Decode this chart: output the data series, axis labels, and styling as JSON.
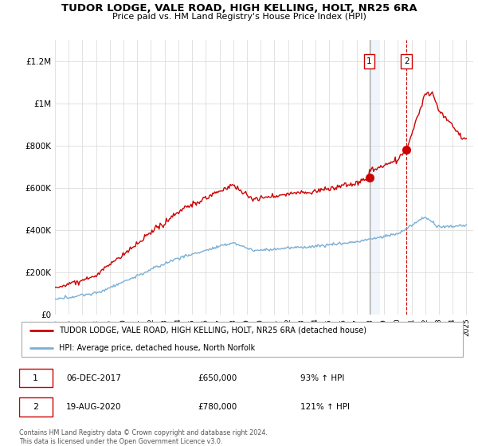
{
  "title": "TUDOR LODGE, VALE ROAD, HIGH KELLING, HOLT, NR25 6RA",
  "subtitle": "Price paid vs. HM Land Registry's House Price Index (HPI)",
  "legend_line1": "TUDOR LODGE, VALE ROAD, HIGH KELLING, HOLT, NR25 6RA (detached house)",
  "legend_line2": "HPI: Average price, detached house, North Norfolk",
  "annotation1_date": "06-DEC-2017",
  "annotation1_price": "£650,000",
  "annotation1_hpi": "93% ↑ HPI",
  "annotation2_date": "19-AUG-2020",
  "annotation2_price": "£780,000",
  "annotation2_hpi": "121% ↑ HPI",
  "footer": "Contains HM Land Registry data © Crown copyright and database right 2024.\nThis data is licensed under the Open Government Licence v3.0.",
  "sale1_year": 2017.92,
  "sale1_value": 650000,
  "sale2_year": 2020.63,
  "sale2_value": 780000,
  "red_color": "#cc0000",
  "blue_color": "#7bafd4",
  "highlight_color": "#ddeeff",
  "annotation_box_color": "#cc0000",
  "ylim": [
    0,
    1300000
  ],
  "xlim_start": 1995,
  "xlim_end": 2025.5
}
